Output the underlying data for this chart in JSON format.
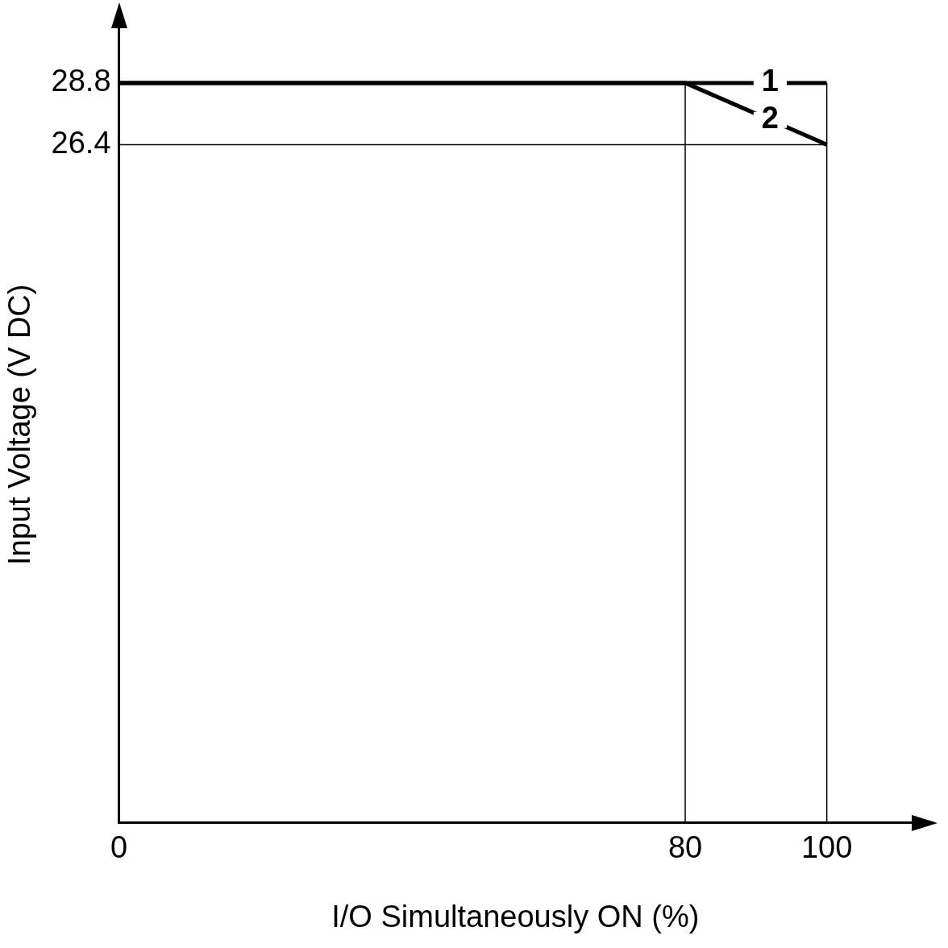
{
  "chart_data": {
    "type": "line",
    "xlabel": "I/O Simultaneously ON (%)",
    "ylabel": "Input Voltage (V DC)",
    "xlim": [
      0,
      112
    ],
    "xticks": [
      0,
      80,
      100
    ],
    "ylim": [
      0,
      31
    ],
    "yticks": [
      26.4,
      28.8
    ],
    "grid": false,
    "legend": false,
    "marker": "none",
    "line_style": "solid",
    "series": [
      {
        "name": "1",
        "color": "#000000",
        "x": [
          0,
          100
        ],
        "values": [
          28.8,
          28.8
        ]
      },
      {
        "name": "2",
        "color": "#000000",
        "x": [
          0,
          80,
          100
        ],
        "values": [
          28.8,
          28.8,
          26.4
        ]
      }
    ],
    "ref_lines": [
      {
        "axis": "x",
        "value": 80,
        "color": "#000000"
      },
      {
        "axis": "x",
        "value": 100,
        "color": "#000000"
      },
      {
        "axis": "y",
        "value": 26.4,
        "color": "#000000"
      }
    ]
  }
}
